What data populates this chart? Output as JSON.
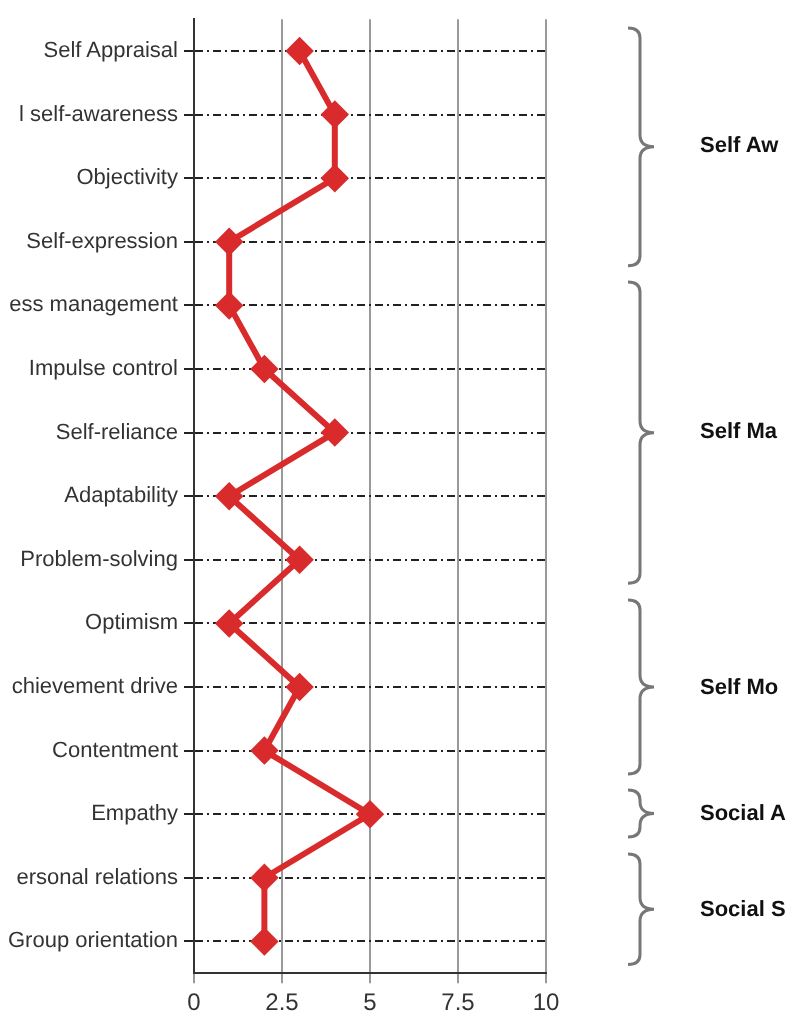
{
  "chart_data": {
    "type": "line",
    "orientation": "horizontal",
    "categories": [
      "Self Appraisal",
      "l self-awareness",
      "Objectivity",
      "Self-expression",
      "ess management",
      "Impulse control",
      "Self-reliance",
      "Adaptability",
      "Problem-solving",
      "Optimism",
      "chievement drive",
      "Contentment",
      "Empathy",
      "ersonal relations",
      "Group orientation"
    ],
    "values": [
      3,
      4,
      4,
      1,
      1,
      2,
      4,
      1,
      3,
      1,
      3,
      2,
      5,
      2,
      2
    ],
    "color": "#d92b2b",
    "marker": "diamond",
    "line_style": "solid",
    "xlim": [
      0,
      10
    ],
    "xticks": [
      0,
      2.5,
      5,
      7.5,
      10
    ],
    "grid": true,
    "annotations": [
      "Self Aw",
      "Self Ma",
      "Self Mo",
      "Social A",
      "Social S"
    ]
  }
}
